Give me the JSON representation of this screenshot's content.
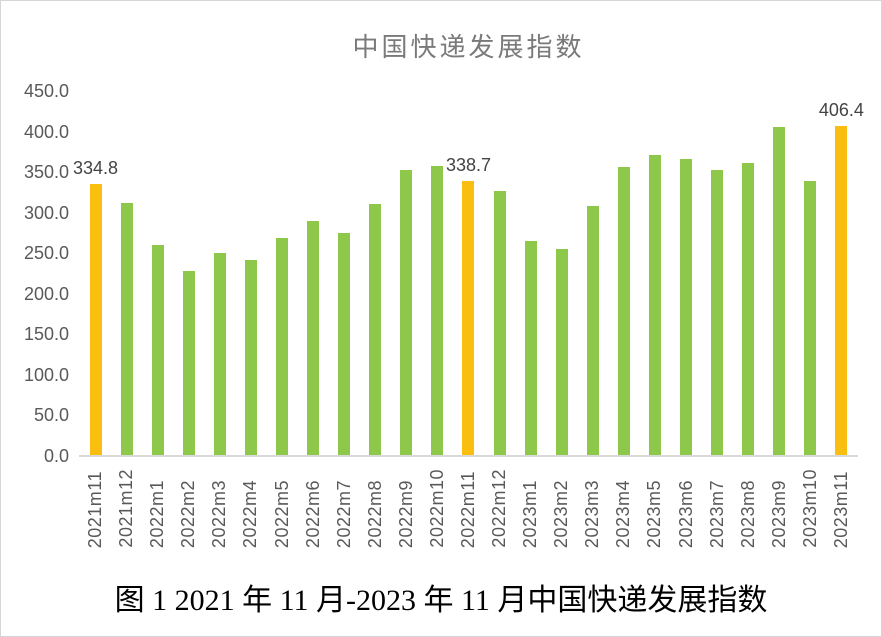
{
  "figure": {
    "title": "中国快递发展指数",
    "caption": "图 1 2021 年 11 月-2023 年 11 月中国快递发展指数"
  },
  "colors": {
    "bar_default": "#8DC84B",
    "bar_highlight": "#F9BE0F",
    "axis_text": "#595959",
    "title_text": "#7a7a7a",
    "data_label_text": "#444444",
    "axis_line": "#D9D9D9"
  },
  "chart_data": {
    "type": "bar",
    "title": "中国快递发展指数",
    "xlabel": "",
    "ylabel": "",
    "grid": false,
    "legend": false,
    "ylim": [
      0,
      450
    ],
    "ytick_step": 50,
    "ytick_labels_top_to_bottom": [
      "450.0",
      "400.0",
      "350.0",
      "300.0",
      "250.0",
      "200.0",
      "150.0",
      "100.0",
      "50.0",
      "0.0"
    ],
    "categories": [
      "2021m11",
      "2021m12",
      "2022m1",
      "2022m2",
      "2022m3",
      "2022m4",
      "2022m5",
      "2022m6",
      "2022m7",
      "2022m8",
      "2022m9",
      "2022m10",
      "2022m11",
      "2022m12",
      "2023m1",
      "2023m2",
      "2023m3",
      "2023m4",
      "2023m5",
      "2023m6",
      "2023m7",
      "2023m8",
      "2023m9",
      "2023m10",
      "2023m11"
    ],
    "values": [
      334.8,
      311.5,
      260.3,
      228.3,
      250.4,
      241.5,
      269.1,
      289.4,
      275.2,
      310.2,
      352.9,
      357.8,
      338.7,
      327.0,
      264.8,
      255.0,
      308.2,
      356.1,
      371.3,
      366.4,
      352.0,
      361.2,
      406.0,
      338.9,
      406.4
    ],
    "highlight_indices": [
      0,
      12,
      24
    ],
    "data_labels": [
      {
        "index": 0,
        "text": "334.8"
      },
      {
        "index": 12,
        "text": "338.7"
      },
      {
        "index": 24,
        "text": "406.4"
      }
    ]
  }
}
